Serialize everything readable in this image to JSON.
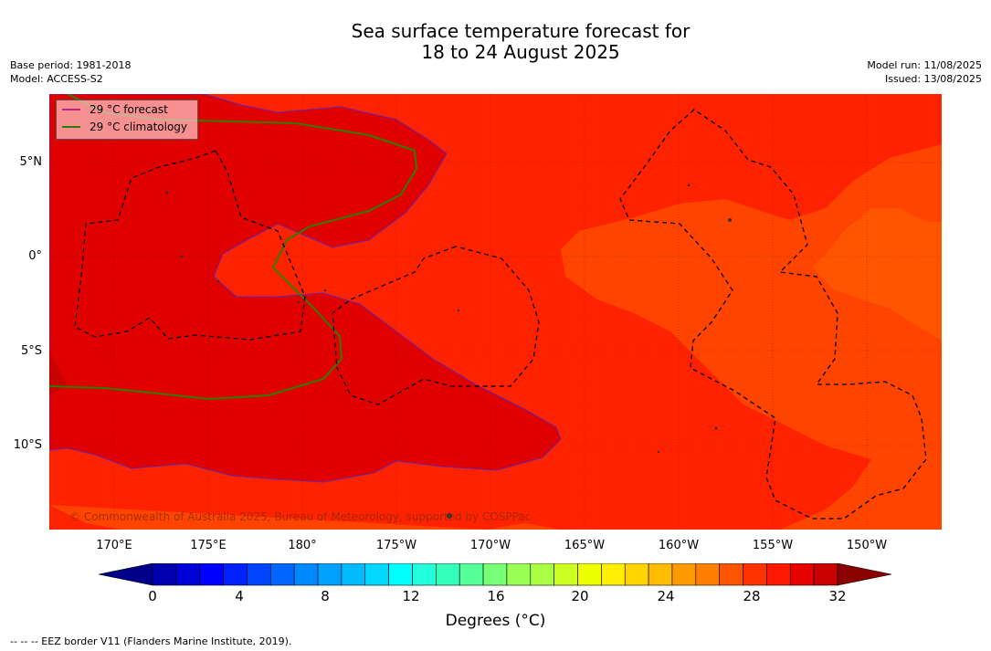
{
  "title_line1": "Sea surface temperature forecast for",
  "title_line2": "18 to 24 August 2025",
  "meta_left": [
    "Base period: 1981-2018",
    "Model: ACCESS-S2"
  ],
  "meta_right": [
    "Model run: 11/08/2025",
    "Issued: 13/08/2025"
  ],
  "legend": {
    "forecast": "29 °C  forecast",
    "climatology": "29 °C  climatology",
    "forecast_color": "#c0228a",
    "climatology_color": "#2e7d00"
  },
  "copyright": "© Commonwealth of Australia 2025, Bureau of Meteorology, supported by COSPPac",
  "lon_labels": [
    "170°E",
    "175°E",
    "180°",
    "175°W",
    "170°W",
    "165°W",
    "160°W",
    "155°W",
    "150°W"
  ],
  "lat_labels": [
    "5°N",
    "0°",
    "5°S",
    "10°S"
  ],
  "colorbar": {
    "ticks": [
      "0",
      "4",
      "8",
      "12",
      "16",
      "20",
      "24",
      "28",
      "32"
    ],
    "title": "Degrees (°C)",
    "colors": [
      "#00008b",
      "#0000b0",
      "#0000d8",
      "#0000ff",
      "#0022ff",
      "#0044ff",
      "#0066ff",
      "#0088ff",
      "#00a0ff",
      "#00bbff",
      "#00d8ff",
      "#00ffff",
      "#22ffdd",
      "#33ffbb",
      "#55ff99",
      "#77ff77",
      "#99ff55",
      "#aaff44",
      "#ccff22",
      "#eeff00",
      "#ffee00",
      "#ffd400",
      "#ffbb00",
      "#ff9900",
      "#ff7f00",
      "#ff5500",
      "#ff3300",
      "#ff1800",
      "#e60000",
      "#c80000",
      "#8b0000"
    ]
  },
  "footer": "--  --  -- EEZ border V11 (Flanders Marine Institute, 2019).",
  "colors": {
    "sst_32": "#e00000",
    "sst_30": "#ff2200",
    "sst_28": "#ff4400"
  }
}
